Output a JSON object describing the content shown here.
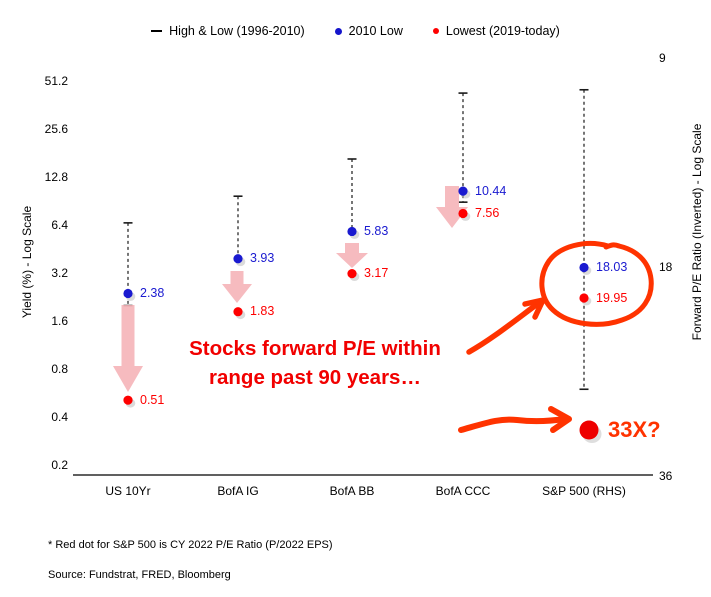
{
  "legend": {
    "items": [
      {
        "label": "High & Low (1996-2010)",
        "marker": "dash",
        "color": "#000000"
      },
      {
        "label": "2010 Low",
        "marker": "dot",
        "color": "#1414cc"
      },
      {
        "label": "Lowest (2019-today)",
        "marker": "dot",
        "color": "#fe0000"
      }
    ]
  },
  "chart_data": {
    "type": "scatter",
    "categories": [
      "US 10Yr",
      "BofA IG",
      "BofA BB",
      "BofA CCC",
      "S&P 500 (RHS)"
    ],
    "rhs_category": "S&P 500 (RHS)",
    "series": [
      {
        "name": "High & Low (1996-2010)",
        "type": "range",
        "values": [
          [
            2.0,
            6.6
          ],
          [
            3.93,
            9.7
          ],
          [
            5.83,
            16.6
          ],
          [
            8.9,
            43.0
          ],
          [
            10.0,
            27.0
          ]
        ]
      },
      {
        "name": "2010 Low",
        "type": "point",
        "color": "#1a1ad0",
        "values": [
          2.38,
          3.93,
          5.83,
          10.44,
          18.03
        ]
      },
      {
        "name": "Lowest (2019-today)",
        "type": "point",
        "color": "#fe0000",
        "values": [
          0.51,
          1.83,
          3.17,
          7.56,
          19.95
        ]
      }
    ],
    "left_axis": {
      "label": "Yield (%) - Log Scale",
      "scale": "log2",
      "ticks": [
        51.2,
        25.6,
        12.8,
        6.4,
        3.2,
        1.6,
        0.8,
        0.4,
        0.2
      ]
    },
    "right_axis": {
      "label": "Forward P/E Ratio (Inverted) - Log Scale",
      "scale": "log2-inverted",
      "ticks": [
        9,
        18,
        36
      ]
    },
    "decline_arrow_categories": [
      "US 10Yr",
      "BofA IG",
      "BofA BB",
      "BofA CCC"
    ]
  },
  "annotations": {
    "callout_text": "Stocks forward P/E within\nrange past 90 years…",
    "big_dot_label": "33X?",
    "big_dot_value": 33,
    "colors": {
      "hand_drawn": "#ff3300",
      "callout_text": "#f10000",
      "big_dot": "#ee0000",
      "decline_arrow": "#f5b4b8"
    }
  },
  "footnotes": {
    "note": "* Red dot for S&P 500 is CY 2022 P/E Ratio (P/2022 EPS)",
    "source": "Source: Fundstrat, FRED, Bloomberg"
  }
}
